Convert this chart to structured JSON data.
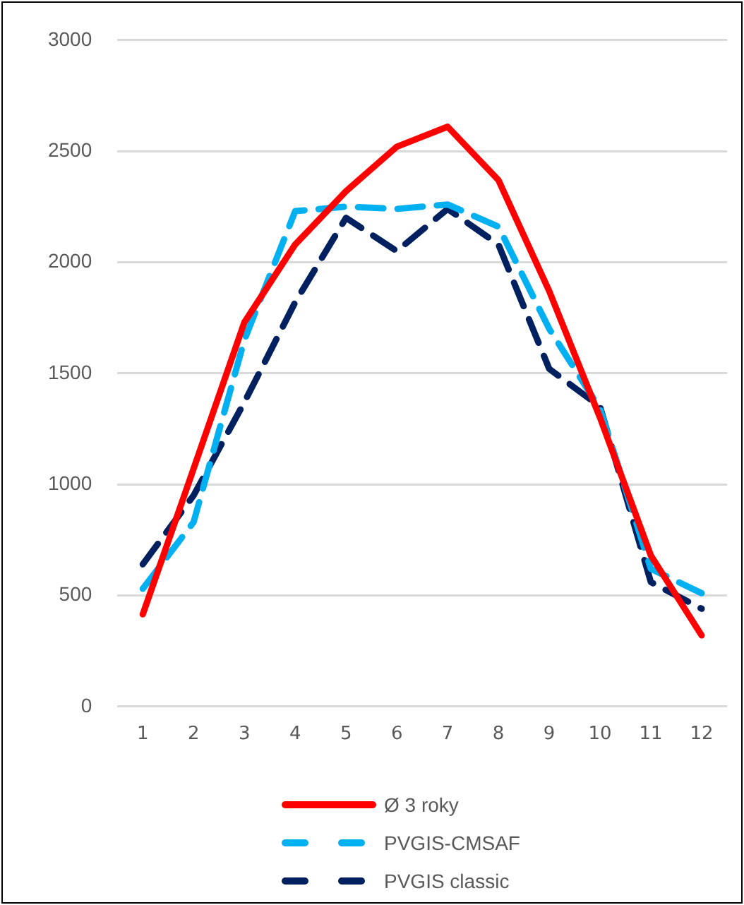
{
  "chart_data": {
    "type": "line",
    "x": [
      1,
      2,
      3,
      4,
      5,
      6,
      7,
      8,
      9,
      10,
      11,
      12
    ],
    "xlim": [
      0.5,
      12.5
    ],
    "xticks": [
      1,
      2,
      3,
      4,
      5,
      6,
      7,
      8,
      9,
      10,
      11,
      12
    ],
    "ylim": [
      0,
      3000
    ],
    "yticks": [
      0,
      500,
      1000,
      1500,
      2000,
      2500,
      3000
    ],
    "grid": "y",
    "legend": "bottom",
    "marker": "none",
    "series": [
      {
        "name": "Ø 3 roky",
        "color": "#ff0000",
        "line_style": "solid",
        "values": [
          415,
          1070,
          1730,
          2080,
          2320,
          2520,
          2610,
          2370,
          1870,
          1300,
          680,
          320
        ]
      },
      {
        "name": "PVGIS-CMSAF",
        "color": "#00b0f0",
        "line_style": "dashed",
        "values": [
          530,
          830,
          1650,
          2230,
          2250,
          2240,
          2260,
          2160,
          1700,
          1340,
          620,
          510
        ]
      },
      {
        "name": "PVGIS classic",
        "color": "#002060",
        "line_style": "dashed",
        "values": [
          640,
          950,
          1370,
          1820,
          2200,
          2050,
          2240,
          2080,
          1520,
          1350,
          560,
          440
        ]
      }
    ]
  }
}
